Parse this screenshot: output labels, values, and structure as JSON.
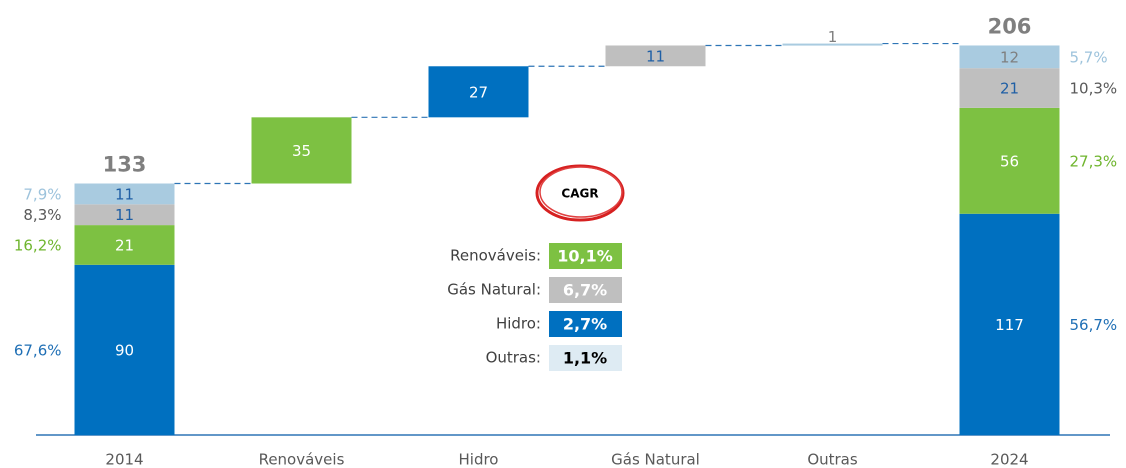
{
  "chart_data": {
    "type": "waterfall",
    "categories": [
      "2014",
      "Renováveis",
      "Hidro",
      "Gás Natural",
      "Outras",
      "2024"
    ],
    "ylim": [
      0,
      220
    ],
    "start": {
      "total": 133,
      "segments": [
        {
          "value": 90,
          "color": "#0070c0",
          "label_color": "#ffffff",
          "share": "67,6%",
          "share_color": "#1f6fb5"
        },
        {
          "value": 21,
          "color": "#7dc142",
          "label_color": "#ffffff",
          "share": "16,2%",
          "share_color": "#6fb52e"
        },
        {
          "value": 11,
          "color": "#bfbfbf",
          "label_color": "#1f5fa5",
          "share": "8,3%",
          "share_color": "#595959"
        },
        {
          "value": 11,
          "color": "#a9cbe0",
          "label_color": "#1f5fa5",
          "share": "7,9%",
          "share_color": "#9dc3dc"
        }
      ]
    },
    "steps": [
      {
        "value": 35,
        "color": "#7dc142",
        "label_color": "#ffffff"
      },
      {
        "value": 27,
        "color": "#0070c0",
        "label_color": "#ffffff"
      },
      {
        "value": 11,
        "color": "#bfbfbf",
        "label_color": "#1f5fa5"
      },
      {
        "value": 1,
        "color": "#a9cbe0",
        "label_color": "#7f7f7f"
      }
    ],
    "end": {
      "total": 206,
      "segments": [
        {
          "value": 117,
          "color": "#0070c0",
          "label_color": "#ffffff",
          "share": "56,7%",
          "share_color": "#1f6fb5"
        },
        {
          "value": 56,
          "color": "#7dc142",
          "label_color": "#ffffff",
          "share": "27,3%",
          "share_color": "#6fb52e"
        },
        {
          "value": 21,
          "color": "#bfbfbf",
          "label_color": "#1f5fa5",
          "share": "10,3%",
          "share_color": "#595959"
        },
        {
          "value": 12,
          "color": "#a9cbe0",
          "label_color": "#7f7f7f",
          "share": "5,7%",
          "share_color": "#9dc3dc"
        }
      ]
    },
    "cagr": {
      "title": "CAGR",
      "items": [
        {
          "label": "Renováveis:",
          "value": "10,1%",
          "color": "#7dc142",
          "text_color": "#ffffff"
        },
        {
          "label": "Gás Natural:",
          "value": "6,7%",
          "color": "#bfbfbf",
          "text_color": "#ffffff"
        },
        {
          "label": "Hidro:",
          "value": "2,7%",
          "color": "#0070c0",
          "text_color": "#ffffff"
        },
        {
          "label": "Outras:",
          "value": "1,1%",
          "color": "#deebf3",
          "text_color": "#000000"
        }
      ]
    }
  }
}
